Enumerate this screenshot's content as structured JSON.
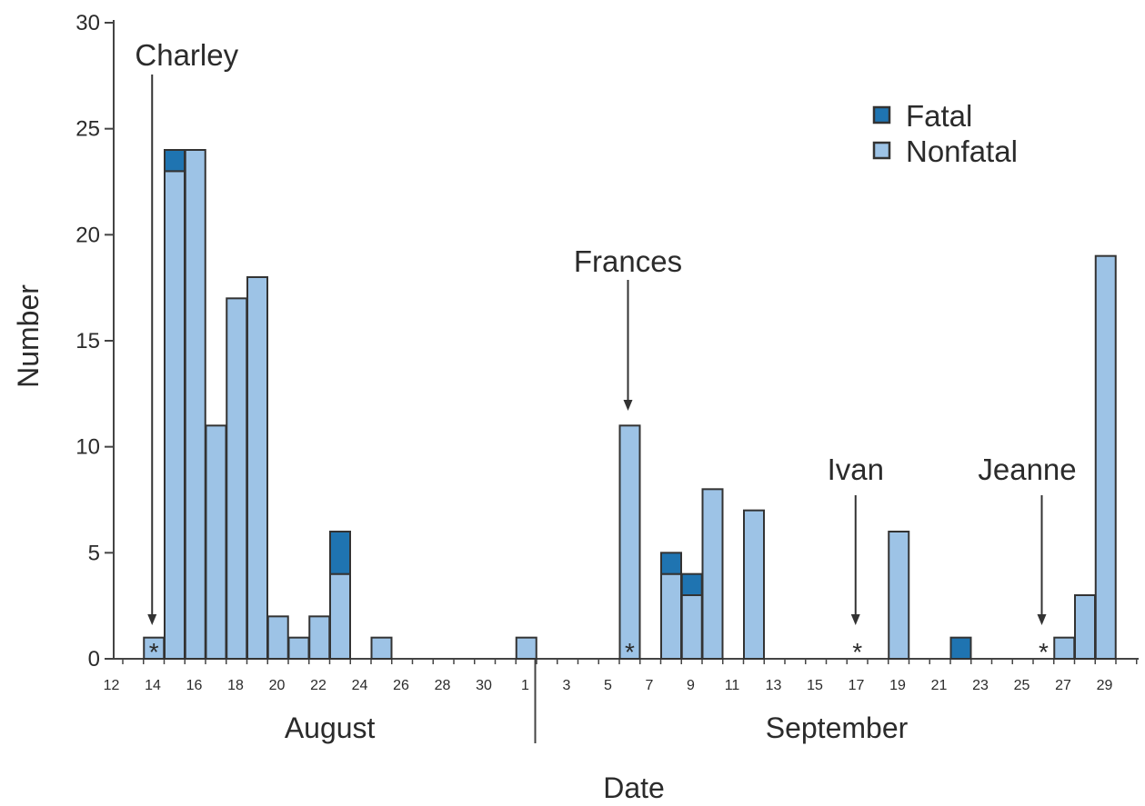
{
  "chart_data": {
    "type": "bar",
    "stacked": true,
    "xlabel": "Date",
    "ylabel": "Number",
    "ylim": [
      0,
      30
    ],
    "yticks": [
      0,
      5,
      10,
      15,
      20,
      25,
      30
    ],
    "grid": false,
    "legend_position": "top-right",
    "colors": {
      "Fatal": "#1f74b1",
      "Nonfatal": "#9dc3e6",
      "outline": "#333333"
    },
    "categories": [
      "Aug 12",
      "Aug 13",
      "Aug 14",
      "Aug 15",
      "Aug 16",
      "Aug 17",
      "Aug 18",
      "Aug 19",
      "Aug 20",
      "Aug 21",
      "Aug 22",
      "Aug 23",
      "Aug 24",
      "Aug 25",
      "Aug 26",
      "Aug 27",
      "Aug 28",
      "Aug 29",
      "Aug 30",
      "Aug 31",
      "Sep 1",
      "Sep 2",
      "Sep 3",
      "Sep 4",
      "Sep 5",
      "Sep 6",
      "Sep 7",
      "Sep 8",
      "Sep 9",
      "Sep 10",
      "Sep 11",
      "Sep 12",
      "Sep 13",
      "Sep 14",
      "Sep 15",
      "Sep 16",
      "Sep 17",
      "Sep 18",
      "Sep 19",
      "Sep 20",
      "Sep 21",
      "Sep 22",
      "Sep 23",
      "Sep 24",
      "Sep 25",
      "Sep 26",
      "Sep 27",
      "Sep 28",
      "Sep 29"
    ],
    "tick_labels": [
      "12",
      "14",
      "16",
      "18",
      "20",
      "22",
      "24",
      "26",
      "28",
      "30",
      "1",
      "3",
      "5",
      "7",
      "9",
      "11",
      "13",
      "15",
      "17",
      "19",
      "21",
      "23",
      "25",
      "27",
      "29"
    ],
    "series": [
      {
        "name": "Nonfatal",
        "values": [
          0,
          1,
          23,
          24,
          11,
          17,
          18,
          2,
          1,
          2,
          4,
          0,
          1,
          0,
          0,
          0,
          0,
          0,
          0,
          1,
          0,
          0,
          0,
          0,
          11,
          0,
          4,
          3,
          8,
          0,
          7,
          0,
          0,
          0,
          0,
          0,
          0,
          6,
          0,
          0,
          0,
          0,
          0,
          0,
          0,
          1,
          3,
          19,
          0
        ]
      },
      {
        "name": "Fatal",
        "values": [
          0,
          0,
          1,
          0,
          0,
          0,
          0,
          0,
          0,
          0,
          2,
          0,
          0,
          0,
          0,
          0,
          0,
          0,
          0,
          0,
          0,
          0,
          0,
          0,
          0,
          0,
          1,
          1,
          0,
          0,
          0,
          0,
          0,
          0,
          0,
          0,
          0,
          0,
          0,
          0,
          1,
          0,
          0,
          0,
          0,
          0,
          0,
          0,
          0
        ]
      }
    ],
    "months": [
      {
        "label": "August",
        "from": "Aug 12",
        "to": "Aug 31"
      },
      {
        "label": "September",
        "from": "Sep 1",
        "to": "Sep 29"
      }
    ],
    "annotations": [
      {
        "label": "Charley",
        "date": "Aug 13",
        "marker": "*"
      },
      {
        "label": "Frances",
        "date": "Sep 5",
        "marker": "*"
      },
      {
        "label": "Ivan",
        "date": "Sep 16",
        "marker": "*"
      },
      {
        "label": "Jeanne",
        "date": "Sep 25",
        "marker": "*"
      }
    ]
  }
}
